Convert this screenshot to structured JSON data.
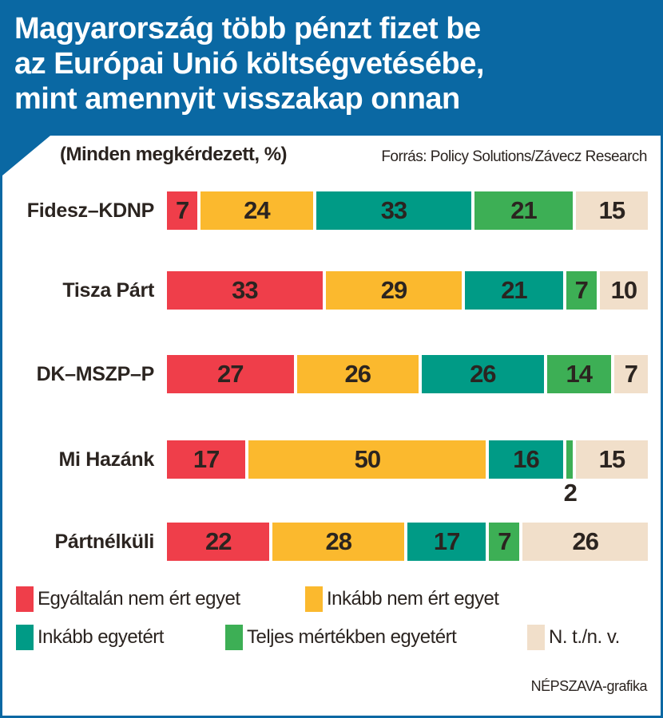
{
  "header": {
    "title_lines": [
      "Magyarország több pénzt fizet be",
      "az Európai Unió költségvetésébe,",
      "mint amennyit visszakap onnan"
    ],
    "subtitle": "(Minden megkérdezett, %)",
    "source": "Forrás: Policy Solutions/Závecz Research",
    "brand_color": "#0a68a3"
  },
  "chart_data": {
    "type": "bar",
    "orientation": "horizontal",
    "stacked": true,
    "title": "Magyarország több pénzt fizet be az Európai Unió költségvetésébe, mint amennyit visszakap onnan",
    "subtitle": "(Minden megkérdezett, %)",
    "xlabel": "",
    "ylabel": "",
    "xlim": [
      0,
      100
    ],
    "grid": false,
    "legend_position": "bottom",
    "categories": [
      "Fidesz–KDNP",
      "Tisza Párt",
      "DK–MSZP–P",
      "Mi Hazánk",
      "Pártnélküli"
    ],
    "series": [
      {
        "name": "Egyáltalán nem ért egyet",
        "color": "#ef3e4a",
        "values": [
          7,
          33,
          27,
          17,
          22
        ]
      },
      {
        "name": "Inkább nem ért egyet",
        "color": "#fbb92e",
        "values": [
          24,
          29,
          26,
          50,
          28
        ]
      },
      {
        "name": "Inkább egyetért",
        "color": "#009b86",
        "values": [
          33,
          21,
          26,
          16,
          17
        ]
      },
      {
        "name": "Teljes mértékben egyetért",
        "color": "#3daf55",
        "values": [
          21,
          7,
          14,
          2,
          7
        ]
      },
      {
        "name": "N. t./n. v.",
        "color": "#f1dfca",
        "values": [
          15,
          10,
          7,
          15,
          26
        ]
      }
    ]
  },
  "legend": [
    {
      "label": "Egyáltalán nem ért egyet",
      "color": "#ef3e4a"
    },
    {
      "label": "Inkább nem ért egyet",
      "color": "#fbb92e"
    },
    {
      "label": "Inkább egyetért",
      "color": "#009b86"
    },
    {
      "label": "Teljes mértékben egyetért",
      "color": "#3daf55"
    },
    {
      "label": "N. t./n. v.",
      "color": "#f1dfca"
    }
  ],
  "footer": {
    "credit": "NÉPSZAVA-grafika"
  }
}
